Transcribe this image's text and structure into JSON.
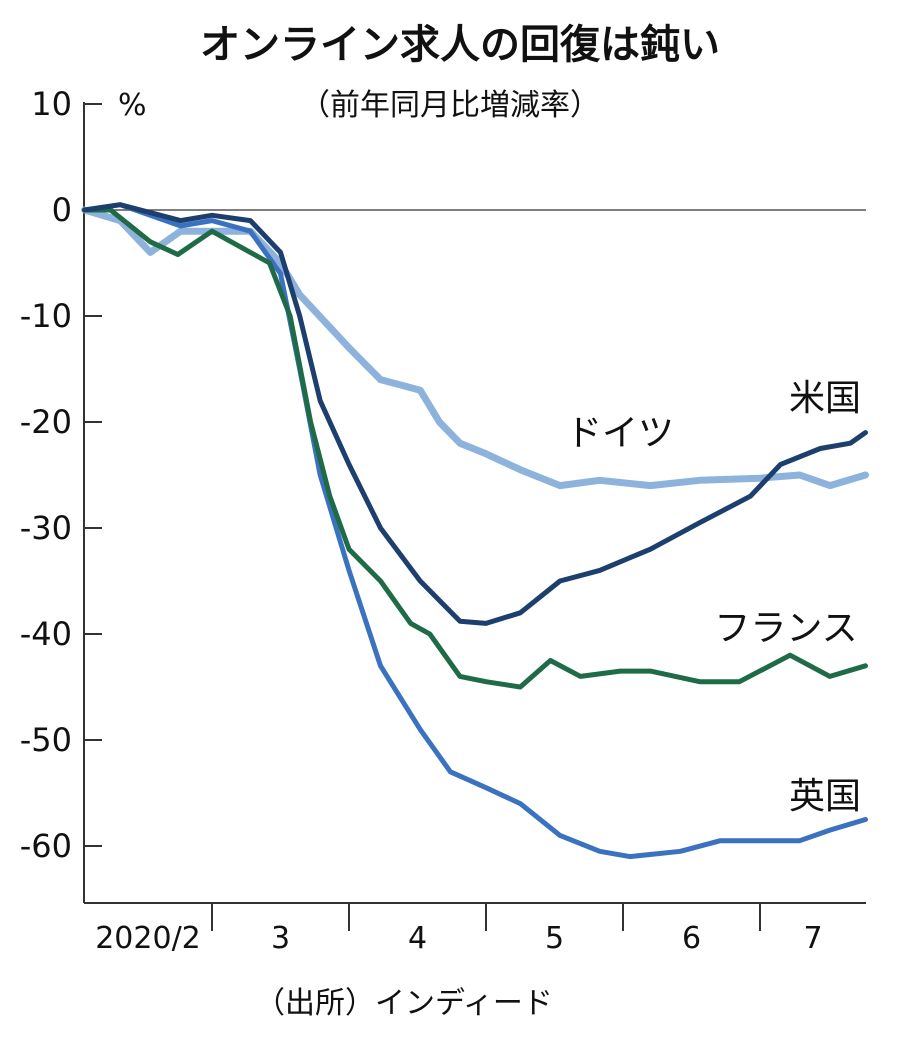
{
  "chart_data": {
    "type": "line",
    "title": "オンライン求人の回復は鈍い",
    "subtitle": "（前年同月比増減率）",
    "ylabel": "%",
    "ylim": [
      -65,
      10
    ],
    "yticks": [
      10,
      0,
      -10,
      -20,
      -30,
      -40,
      -50,
      -60
    ],
    "xlim": [
      2.07,
      7.77
    ],
    "xtick_labels": [
      {
        "label": "2020/2",
        "month": 2
      },
      {
        "label": "3",
        "month": 3
      },
      {
        "label": "4",
        "month": 4
      },
      {
        "label": "5",
        "month": 5
      },
      {
        "label": "6",
        "month": 6
      },
      {
        "label": "7",
        "month": 7
      }
    ],
    "source": "（出所）インディード",
    "grid": false,
    "series": [
      {
        "name": "ドイツ",
        "color": "#8db2dc",
        "x": [
          2.07,
          2.33,
          2.55,
          2.77,
          3.0,
          3.28,
          3.5,
          3.64,
          4.0,
          4.23,
          4.52,
          4.66,
          4.81,
          5.0,
          5.25,
          5.54,
          5.83,
          6.2,
          6.56,
          7.0,
          7.29,
          7.51,
          7.77
        ],
        "y": [
          0,
          -1,
          -4,
          -2,
          -2,
          -2,
          -5,
          -8,
          -13,
          -16,
          -17,
          -20,
          -22,
          -23,
          -24.5,
          -26,
          -25.5,
          -26,
          -25.5,
          -25.3,
          -25,
          -26,
          -25
        ]
      },
      {
        "name": "英国",
        "color": "#3a72c0",
        "x": [
          2.07,
          2.33,
          2.77,
          3.0,
          3.28,
          3.5,
          3.64,
          3.79,
          4.0,
          4.23,
          4.52,
          4.74,
          5.0,
          5.25,
          5.54,
          5.83,
          6.05,
          6.42,
          6.71,
          7.0,
          7.29,
          7.51,
          7.77
        ],
        "y": [
          0,
          0.5,
          -1.5,
          -1,
          -2,
          -6,
          -15,
          -25,
          -34,
          -43,
          -49,
          -53,
          -54.5,
          -56,
          -59,
          -60.5,
          -61,
          -60.5,
          -59.5,
          -59.5,
          -59.5,
          -58.5,
          -57.5
        ]
      },
      {
        "name": "フランス",
        "color": "#1f6b48",
        "x": [
          2.07,
          2.26,
          2.55,
          2.75,
          3.0,
          3.28,
          3.42,
          3.57,
          3.72,
          3.86,
          4.0,
          4.23,
          4.45,
          4.59,
          4.81,
          5.0,
          5.25,
          5.47,
          5.69,
          5.98,
          6.2,
          6.56,
          6.85,
          7.22,
          7.51,
          7.77
        ],
        "y": [
          0,
          0,
          -3,
          -4.2,
          -2,
          -4,
          -5,
          -10,
          -20,
          -27,
          -32,
          -35,
          -39,
          -40,
          -44,
          -44.5,
          -45,
          -42.5,
          -44,
          -43.5,
          -43.5,
          -44.5,
          -44.5,
          -42,
          -44,
          -43
        ]
      },
      {
        "name": "米国",
        "color": "#1c3f6e",
        "x": [
          2.07,
          2.33,
          2.77,
          3.0,
          3.28,
          3.5,
          3.64,
          3.79,
          4.0,
          4.23,
          4.52,
          4.81,
          5.0,
          5.25,
          5.54,
          5.83,
          6.2,
          6.56,
          6.93,
          7.15,
          7.44,
          7.66,
          7.77
        ],
        "y": [
          0,
          0.5,
          -1,
          -0.5,
          -1,
          -4,
          -10,
          -18,
          -24,
          -30,
          -35,
          -38.8,
          -39,
          -38,
          -35,
          -34,
          -32,
          -29.5,
          -27,
          -24,
          -22.5,
          -22,
          -21
        ]
      }
    ]
  }
}
